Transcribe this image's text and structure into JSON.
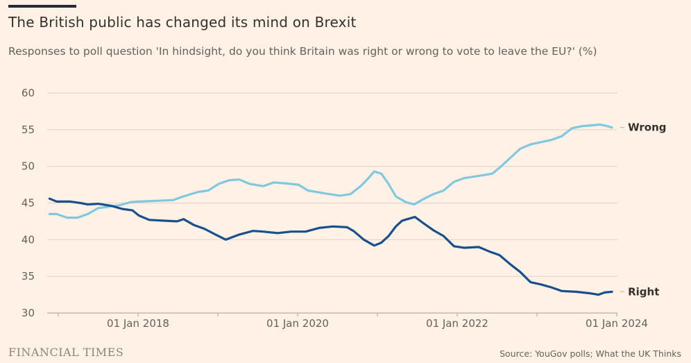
{
  "header": {
    "title": "The British public has changed its mind on Brexit",
    "subtitle": "Responses to poll question 'In hindsight, do you think Britain was right or wrong to vote to leave the EU?' (%)"
  },
  "footer": {
    "brand": "FINANCIAL TIMES",
    "source": "Source: YouGov polls; What the UK Thinks"
  },
  "chart_data": {
    "type": "line",
    "title": "The British public has changed its mind on Brexit",
    "subtitle": "Responses to poll question 'In hindsight, do you think Britain was right or wrong to vote to leave the EU?' (%)",
    "xlabel": "",
    "ylabel": "%",
    "ylim": [
      30,
      60
    ],
    "xlim": [
      2016.88,
      2024.0
    ],
    "yticks": [
      30,
      35,
      40,
      45,
      50,
      55,
      60
    ],
    "ytick_labels": [
      "30",
      "35",
      "40",
      "45",
      "50",
      "55",
      "60"
    ],
    "xticks": [
      2017,
      2018,
      2019,
      2020,
      2021,
      2022,
      2023,
      2024
    ],
    "xtick_labels": [
      {
        "at": 2018,
        "label": "01 Jan 2018"
      },
      {
        "at": 2020,
        "label": "01 Jan 2020"
      },
      {
        "at": 2022,
        "label": "01 Jan 2022"
      },
      {
        "at": 2024,
        "label": "01 Jan 2024"
      }
    ],
    "grid": true,
    "legend": "direct labels at line ends (right)",
    "series": [
      {
        "name": "Wrong",
        "color": "#7fc8e0",
        "points": [
          [
            2016.89,
            43.5
          ],
          [
            2016.98,
            43.5
          ],
          [
            2017.11,
            43.0
          ],
          [
            2017.24,
            43.0
          ],
          [
            2017.37,
            43.5
          ],
          [
            2017.5,
            44.3
          ],
          [
            2017.63,
            44.5
          ],
          [
            2017.77,
            44.7
          ],
          [
            2017.9,
            45.1
          ],
          [
            2018.01,
            45.2
          ],
          [
            2018.23,
            45.3
          ],
          [
            2018.44,
            45.4
          ],
          [
            2018.57,
            45.9
          ],
          [
            2018.75,
            46.5
          ],
          [
            2018.88,
            46.7
          ],
          [
            2019.01,
            47.6
          ],
          [
            2019.14,
            48.1
          ],
          [
            2019.27,
            48.2
          ],
          [
            2019.4,
            47.6
          ],
          [
            2019.57,
            47.3
          ],
          [
            2019.7,
            47.8
          ],
          [
            2019.83,
            47.7
          ],
          [
            2020.01,
            47.5
          ],
          [
            2020.13,
            46.7
          ],
          [
            2020.35,
            46.3
          ],
          [
            2020.53,
            46.0
          ],
          [
            2020.66,
            46.2
          ],
          [
            2020.79,
            47.3
          ],
          [
            2020.88,
            48.3
          ],
          [
            2020.96,
            49.3
          ],
          [
            2021.05,
            49.0
          ],
          [
            2021.14,
            47.6
          ],
          [
            2021.23,
            45.9
          ],
          [
            2021.36,
            45.1
          ],
          [
            2021.46,
            44.8
          ],
          [
            2021.57,
            45.5
          ],
          [
            2021.7,
            46.2
          ],
          [
            2021.83,
            46.7
          ],
          [
            2021.96,
            47.9
          ],
          [
            2022.09,
            48.4
          ],
          [
            2022.27,
            48.7
          ],
          [
            2022.44,
            49.0
          ],
          [
            2022.53,
            49.8
          ],
          [
            2022.66,
            51.1
          ],
          [
            2022.79,
            52.4
          ],
          [
            2022.92,
            53.0
          ],
          [
            2023.05,
            53.3
          ],
          [
            2023.18,
            53.6
          ],
          [
            2023.31,
            54.1
          ],
          [
            2023.44,
            55.2
          ],
          [
            2023.57,
            55.5
          ],
          [
            2023.7,
            55.6
          ],
          [
            2023.79,
            55.7
          ],
          [
            2023.88,
            55.5
          ],
          [
            2023.94,
            55.3
          ]
        ]
      },
      {
        "name": "Right",
        "color": "#17508d",
        "points": [
          [
            2016.89,
            45.6
          ],
          [
            2016.98,
            45.2
          ],
          [
            2017.15,
            45.2
          ],
          [
            2017.28,
            45.0
          ],
          [
            2017.37,
            44.8
          ],
          [
            2017.5,
            44.9
          ],
          [
            2017.67,
            44.6
          ],
          [
            2017.8,
            44.2
          ],
          [
            2017.93,
            44.0
          ],
          [
            2018.01,
            43.3
          ],
          [
            2018.14,
            42.7
          ],
          [
            2018.31,
            42.6
          ],
          [
            2018.49,
            42.5
          ],
          [
            2018.57,
            42.8
          ],
          [
            2018.7,
            42.0
          ],
          [
            2018.83,
            41.5
          ],
          [
            2018.97,
            40.7
          ],
          [
            2019.1,
            40.0
          ],
          [
            2019.27,
            40.7
          ],
          [
            2019.44,
            41.2
          ],
          [
            2019.57,
            41.1
          ],
          [
            2019.75,
            40.9
          ],
          [
            2019.92,
            41.1
          ],
          [
            2020.1,
            41.1
          ],
          [
            2020.27,
            41.6
          ],
          [
            2020.44,
            41.8
          ],
          [
            2020.62,
            41.7
          ],
          [
            2020.7,
            41.2
          ],
          [
            2020.83,
            40.0
          ],
          [
            2020.96,
            39.2
          ],
          [
            2021.05,
            39.6
          ],
          [
            2021.14,
            40.5
          ],
          [
            2021.23,
            41.8
          ],
          [
            2021.31,
            42.6
          ],
          [
            2021.47,
            43.1
          ],
          [
            2021.57,
            42.3
          ],
          [
            2021.7,
            41.3
          ],
          [
            2021.83,
            40.5
          ],
          [
            2021.96,
            39.1
          ],
          [
            2022.09,
            38.9
          ],
          [
            2022.27,
            39.0
          ],
          [
            2022.4,
            38.4
          ],
          [
            2022.53,
            37.9
          ],
          [
            2022.66,
            36.7
          ],
          [
            2022.79,
            35.6
          ],
          [
            2022.92,
            34.2
          ],
          [
            2023.05,
            33.9
          ],
          [
            2023.18,
            33.5
          ],
          [
            2023.31,
            33.0
          ],
          [
            2023.49,
            32.9
          ],
          [
            2023.66,
            32.7
          ],
          [
            2023.77,
            32.5
          ],
          [
            2023.85,
            32.8
          ],
          [
            2023.94,
            32.9
          ]
        ]
      }
    ]
  }
}
